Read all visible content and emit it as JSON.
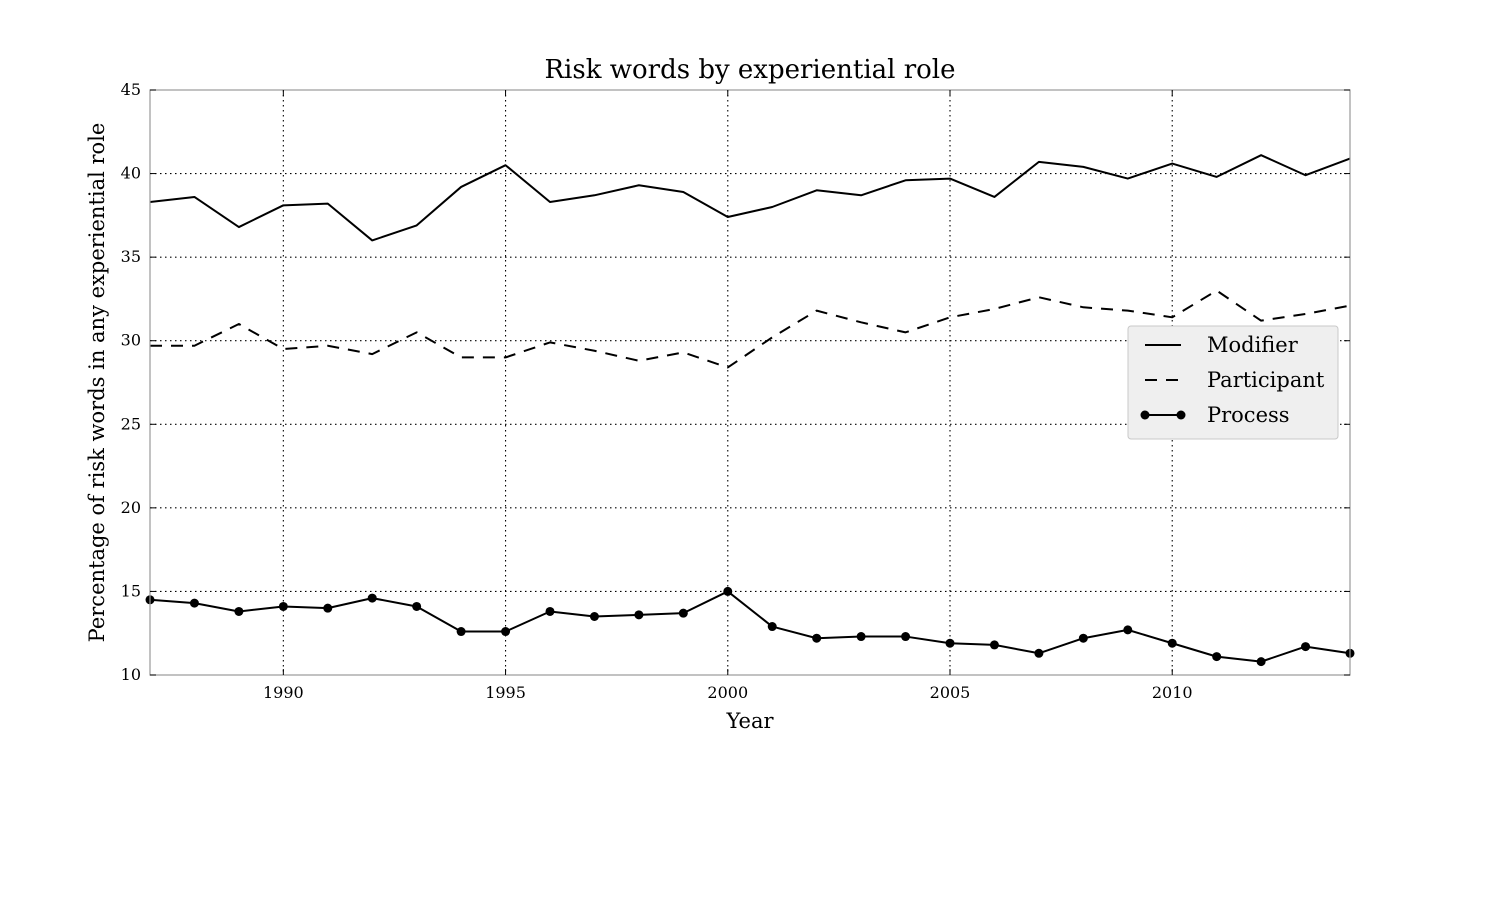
{
  "chart_data": {
    "type": "line",
    "title": "Risk words by experiential role",
    "xlabel": "Year",
    "ylabel": "Percentage of risk words in any experiential role",
    "xlim": [
      1987,
      2014
    ],
    "ylim": [
      10,
      45
    ],
    "xticks": [
      1990,
      1995,
      2000,
      2005,
      2010
    ],
    "yticks": [
      10,
      15,
      20,
      25,
      30,
      35,
      40,
      45
    ],
    "grid": true,
    "legend_position": "center-right",
    "x": [
      1987,
      1988,
      1989,
      1990,
      1991,
      1992,
      1993,
      1994,
      1995,
      1996,
      1997,
      1998,
      1999,
      2000,
      2001,
      2002,
      2003,
      2004,
      2005,
      2006,
      2007,
      2008,
      2009,
      2010,
      2011,
      2012,
      2013,
      2014
    ],
    "series": [
      {
        "name": "Modifier",
        "style": "solid",
        "color": "#000000",
        "values": [
          38.3,
          38.6,
          36.8,
          38.1,
          38.2,
          36.0,
          36.9,
          39.2,
          40.5,
          38.3,
          38.7,
          39.3,
          38.9,
          37.4,
          38.0,
          39.0,
          38.7,
          39.6,
          39.7,
          38.6,
          40.7,
          40.4,
          39.7,
          40.6,
          39.8,
          41.1,
          39.9,
          40.9
        ]
      },
      {
        "name": "Participant",
        "style": "dashed",
        "color": "#000000",
        "values": [
          29.7,
          29.7,
          31.0,
          29.5,
          29.7,
          29.2,
          30.5,
          29.0,
          29.0,
          29.9,
          29.4,
          28.8,
          29.3,
          28.4,
          30.2,
          31.8,
          31.1,
          30.5,
          31.4,
          31.9,
          32.6,
          32.0,
          31.8,
          31.4,
          33.0,
          31.2,
          31.6,
          32.1
        ]
      },
      {
        "name": "Process",
        "style": "solid-dot",
        "color": "#000000",
        "values": [
          14.5,
          14.3,
          13.8,
          14.1,
          14.0,
          14.6,
          14.1,
          12.6,
          12.6,
          13.8,
          13.5,
          13.6,
          13.7,
          15.0,
          12.9,
          12.2,
          12.3,
          12.3,
          11.9,
          11.8,
          11.3,
          12.2,
          12.7,
          11.9,
          11.1,
          10.8,
          11.7,
          11.3
        ]
      }
    ]
  },
  "colors": {
    "line": "#000000",
    "legend_bg": "#efefef",
    "legend_border": "#c8c8c8",
    "frame": "#9a9a9a"
  }
}
